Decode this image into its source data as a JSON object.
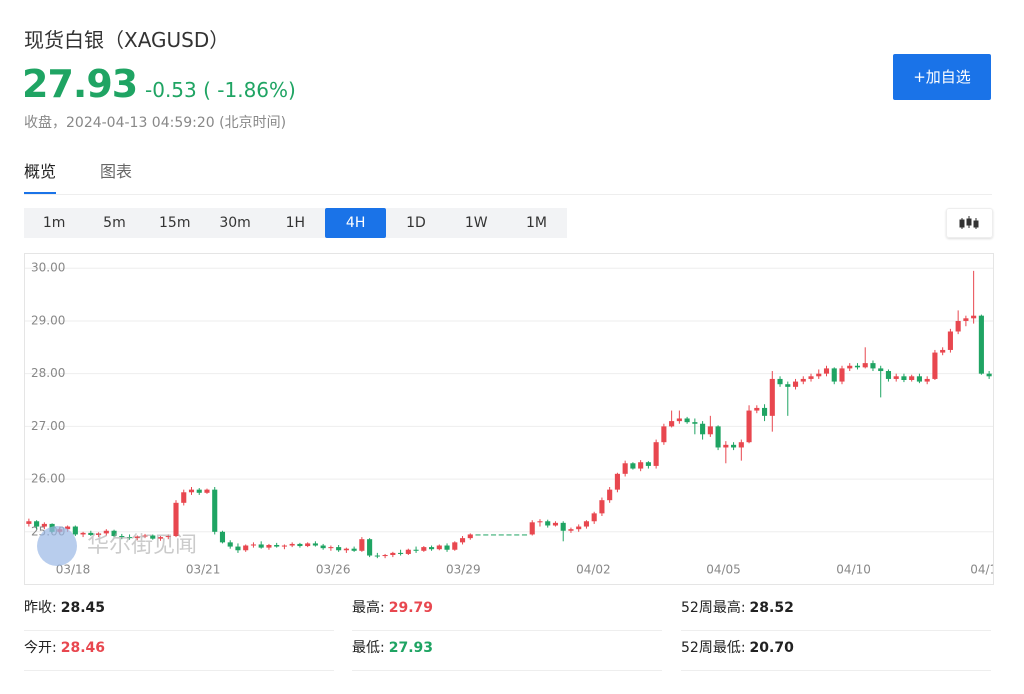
{
  "header": {
    "title": "现货白银（XAGUSD）",
    "price": "27.93",
    "change": "-0.53 ( -1.86%)",
    "status": "收盘，2024-04-13 04:59:20 (北京时间)",
    "button": "+加自选"
  },
  "tabs": [
    "概览",
    "图表"
  ],
  "intervals": [
    "1m",
    "5m",
    "15m",
    "30m",
    "1H",
    "4H",
    "1D",
    "1W",
    "1M"
  ],
  "active_interval": 5,
  "chart_data": {
    "type": "candlestick",
    "watermark": "华尔街见闻",
    "up_color": "#e8474f",
    "down_color": "#1fa463",
    "grid": true,
    "ylim": [
      24.01,
      30.27
    ],
    "yticks": [
      {
        "value": 25,
        "label": "25.00"
      },
      {
        "value": 26,
        "label": "26.00"
      },
      {
        "value": 27,
        "label": "27.00"
      },
      {
        "value": 28,
        "label": "28.00"
      },
      {
        "value": 29,
        "label": "29.00"
      },
      {
        "value": 30,
        "label": "30.00"
      }
    ],
    "xlim": [
      -0.5,
      124.5
    ],
    "xticks": [
      {
        "value": 5.7,
        "label": "03/18"
      },
      {
        "value": 22.5,
        "label": "03/21"
      },
      {
        "value": 39.3,
        "label": "03/26"
      },
      {
        "value": 56.1,
        "label": "03/29"
      },
      {
        "value": 72.9,
        "label": "04/02"
      },
      {
        "value": 89.7,
        "label": "04/05"
      },
      {
        "value": 106.5,
        "label": "04/10"
      },
      {
        "value": 123.3,
        "label": "04/1"
      }
    ],
    "candles": [
      [
        25.15,
        25.25,
        25.1,
        25.2
      ],
      [
        25.2,
        25.22,
        25.05,
        25.1
      ],
      [
        25.1,
        25.18,
        25.05,
        25.15
      ],
      [
        25.15,
        25.16,
        24.98,
        25.0
      ],
      [
        25.0,
        25.1,
        24.97,
        25.05
      ],
      [
        25.05,
        25.12,
        25.0,
        25.1
      ],
      [
        25.1,
        25.12,
        24.92,
        24.95
      ],
      [
        24.95,
        25.0,
        24.9,
        24.98
      ],
      [
        24.98,
        25.02,
        24.92,
        24.94
      ],
      [
        24.94,
        24.99,
        24.9,
        24.97
      ],
      [
        24.97,
        25.05,
        24.93,
        25.02
      ],
      [
        25.02,
        25.04,
        24.9,
        24.92
      ],
      [
        24.92,
        24.96,
        24.86,
        24.9
      ],
      [
        24.9,
        24.95,
        24.85,
        24.88
      ],
      [
        24.88,
        24.93,
        24.84,
        24.91
      ],
      [
        24.91,
        24.96,
        24.88,
        24.93
      ],
      [
        24.93,
        24.95,
        24.85,
        24.87
      ],
      [
        24.87,
        24.92,
        24.83,
        24.9
      ],
      [
        24.9,
        24.95,
        24.86,
        24.92
      ],
      [
        24.92,
        25.6,
        24.9,
        25.55
      ],
      [
        25.55,
        25.8,
        25.5,
        25.75
      ],
      [
        25.75,
        25.85,
        25.7,
        25.8
      ],
      [
        25.8,
        25.83,
        25.7,
        25.74
      ],
      [
        25.74,
        25.82,
        25.72,
        25.8
      ],
      [
        25.8,
        25.85,
        24.95,
        25.0
      ],
      [
        25.0,
        25.02,
        24.78,
        24.8
      ],
      [
        24.8,
        24.84,
        24.68,
        24.72
      ],
      [
        24.72,
        24.78,
        24.6,
        24.65
      ],
      [
        24.65,
        24.76,
        24.62,
        24.74
      ],
      [
        24.74,
        24.8,
        24.7,
        24.76
      ],
      [
        24.76,
        24.82,
        24.68,
        24.7
      ],
      [
        24.7,
        24.77,
        24.66,
        24.75
      ],
      [
        24.75,
        24.79,
        24.7,
        24.72
      ],
      [
        24.72,
        24.76,
        24.67,
        24.74
      ],
      [
        24.74,
        24.8,
        24.71,
        24.77
      ],
      [
        24.77,
        24.79,
        24.7,
        24.73
      ],
      [
        24.73,
        24.8,
        24.71,
        24.78
      ],
      [
        24.78,
        24.82,
        24.72,
        24.74
      ],
      [
        24.74,
        24.77,
        24.66,
        24.69
      ],
      [
        24.69,
        24.74,
        24.64,
        24.71
      ],
      [
        24.71,
        24.75,
        24.62,
        24.65
      ],
      [
        24.65,
        24.7,
        24.6,
        24.68
      ],
      [
        24.68,
        24.72,
        24.62,
        24.64
      ],
      [
        24.64,
        24.9,
        24.62,
        24.86
      ],
      [
        24.86,
        24.88,
        24.52,
        24.55
      ],
      [
        24.55,
        24.6,
        24.5,
        24.54
      ],
      [
        24.54,
        24.58,
        24.5,
        24.56
      ],
      [
        24.56,
        24.62,
        24.52,
        24.6
      ],
      [
        24.6,
        24.66,
        24.55,
        24.58
      ],
      [
        24.58,
        24.68,
        24.56,
        24.66
      ],
      [
        24.66,
        24.72,
        24.6,
        24.64
      ],
      [
        24.64,
        24.73,
        24.62,
        24.71
      ],
      [
        24.71,
        24.74,
        24.64,
        24.67
      ],
      [
        24.67,
        24.76,
        24.65,
        24.74
      ],
      [
        24.74,
        24.78,
        24.62,
        24.66
      ],
      [
        24.66,
        24.82,
        24.64,
        24.8
      ],
      [
        24.8,
        24.92,
        24.76,
        24.88
      ],
      [
        24.88,
        24.97,
        24.85,
        24.95
      ],
      [
        24.95,
        24.95,
        24.95,
        24.95
      ],
      [
        24.95,
        24.95,
        24.95,
        24.95
      ],
      [
        24.95,
        24.95,
        24.95,
        24.95
      ],
      [
        24.95,
        24.95,
        24.95,
        24.95
      ],
      [
        24.95,
        24.95,
        24.95,
        24.95
      ],
      [
        24.95,
        24.95,
        24.95,
        24.95
      ],
      [
        24.95,
        24.95,
        24.95,
        24.95
      ],
      [
        24.95,
        25.22,
        24.93,
        25.18
      ],
      [
        25.18,
        25.24,
        25.1,
        25.2
      ],
      [
        25.2,
        25.23,
        25.08,
        25.12
      ],
      [
        25.12,
        25.2,
        25.1,
        25.17
      ],
      [
        25.17,
        25.2,
        24.82,
        25.02
      ],
      [
        25.02,
        25.08,
        24.98,
        25.05
      ],
      [
        25.05,
        25.14,
        25.0,
        25.1
      ],
      [
        25.1,
        25.22,
        25.06,
        25.2
      ],
      [
        25.2,
        25.38,
        25.15,
        25.35
      ],
      [
        25.35,
        25.65,
        25.3,
        25.6
      ],
      [
        25.6,
        25.85,
        25.55,
        25.8
      ],
      [
        25.8,
        26.12,
        25.75,
        26.1
      ],
      [
        26.1,
        26.35,
        26.05,
        26.3
      ],
      [
        26.3,
        26.32,
        26.18,
        26.2
      ],
      [
        26.2,
        26.36,
        26.15,
        26.32
      ],
      [
        26.32,
        26.34,
        26.2,
        26.25
      ],
      [
        26.25,
        26.75,
        26.2,
        26.7
      ],
      [
        26.7,
        27.05,
        26.65,
        27.0
      ],
      [
        27.0,
        27.3,
        26.98,
        27.1
      ],
      [
        27.1,
        27.3,
        27.05,
        27.15
      ],
      [
        27.15,
        27.18,
        27.05,
        27.08
      ],
      [
        27.08,
        27.15,
        26.85,
        27.05
      ],
      [
        27.05,
        27.1,
        26.75,
        26.85
      ],
      [
        26.85,
        27.2,
        26.8,
        27.0
      ],
      [
        27.0,
        27.02,
        26.55,
        26.6
      ],
      [
        26.6,
        26.72,
        26.3,
        26.65
      ],
      [
        26.65,
        26.7,
        26.55,
        26.6
      ],
      [
        26.6,
        26.75,
        26.35,
        26.7
      ],
      [
        26.7,
        27.4,
        26.68,
        27.3
      ],
      [
        27.3,
        27.4,
        27.25,
        27.35
      ],
      [
        27.35,
        27.42,
        27.1,
        27.2
      ],
      [
        27.2,
        28.05,
        26.9,
        27.9
      ],
      [
        27.9,
        27.95,
        27.75,
        27.8
      ],
      [
        27.8,
        27.85,
        27.2,
        27.75
      ],
      [
        27.75,
        27.9,
        27.7,
        27.85
      ],
      [
        27.85,
        27.95,
        27.8,
        27.9
      ],
      [
        27.9,
        28.0,
        27.85,
        27.95
      ],
      [
        27.95,
        28.08,
        27.9,
        28.0
      ],
      [
        28.0,
        28.15,
        27.95,
        28.1
      ],
      [
        28.1,
        28.12,
        27.8,
        27.85
      ],
      [
        27.85,
        28.15,
        27.8,
        28.1
      ],
      [
        28.1,
        28.2,
        28.05,
        28.15
      ],
      [
        28.15,
        28.2,
        28.08,
        28.12
      ],
      [
        28.12,
        28.5,
        28.1,
        28.2
      ],
      [
        28.2,
        28.25,
        28.05,
        28.1
      ],
      [
        28.1,
        28.15,
        27.55,
        28.05
      ],
      [
        28.05,
        28.08,
        27.85,
        27.9
      ],
      [
        27.9,
        28.0,
        27.85,
        27.95
      ],
      [
        27.95,
        28.0,
        27.84,
        27.88
      ],
      [
        27.88,
        27.98,
        27.85,
        27.95
      ],
      [
        27.95,
        28.0,
        27.82,
        27.85
      ],
      [
        27.85,
        27.95,
        27.8,
        27.9
      ],
      [
        27.9,
        28.45,
        27.88,
        28.4
      ],
      [
        28.4,
        28.5,
        28.35,
        28.45
      ],
      [
        28.45,
        28.85,
        28.4,
        28.8
      ],
      [
        28.8,
        29.2,
        28.75,
        29.0
      ],
      [
        29.0,
        29.1,
        28.9,
        29.05
      ],
      [
        29.05,
        29.95,
        28.95,
        29.1
      ],
      [
        29.1,
        29.12,
        27.98,
        28.0
      ],
      [
        28.0,
        28.05,
        27.9,
        27.95
      ]
    ]
  },
  "stats": [
    {
      "label": "昨收:",
      "value": "28.45",
      "color": "#222222"
    },
    {
      "label": "最高:",
      "value": "29.79",
      "color": "#e8474f"
    },
    {
      "label": "52周最高:",
      "value": "28.52",
      "color": "#222222"
    },
    {
      "label": "今开:",
      "value": "28.46",
      "color": "#e8474f"
    },
    {
      "label": "最低:",
      "value": "27.93",
      "color": "#1fa463"
    },
    {
      "label": "52周最低:",
      "value": "20.70",
      "color": "#222222"
    }
  ]
}
